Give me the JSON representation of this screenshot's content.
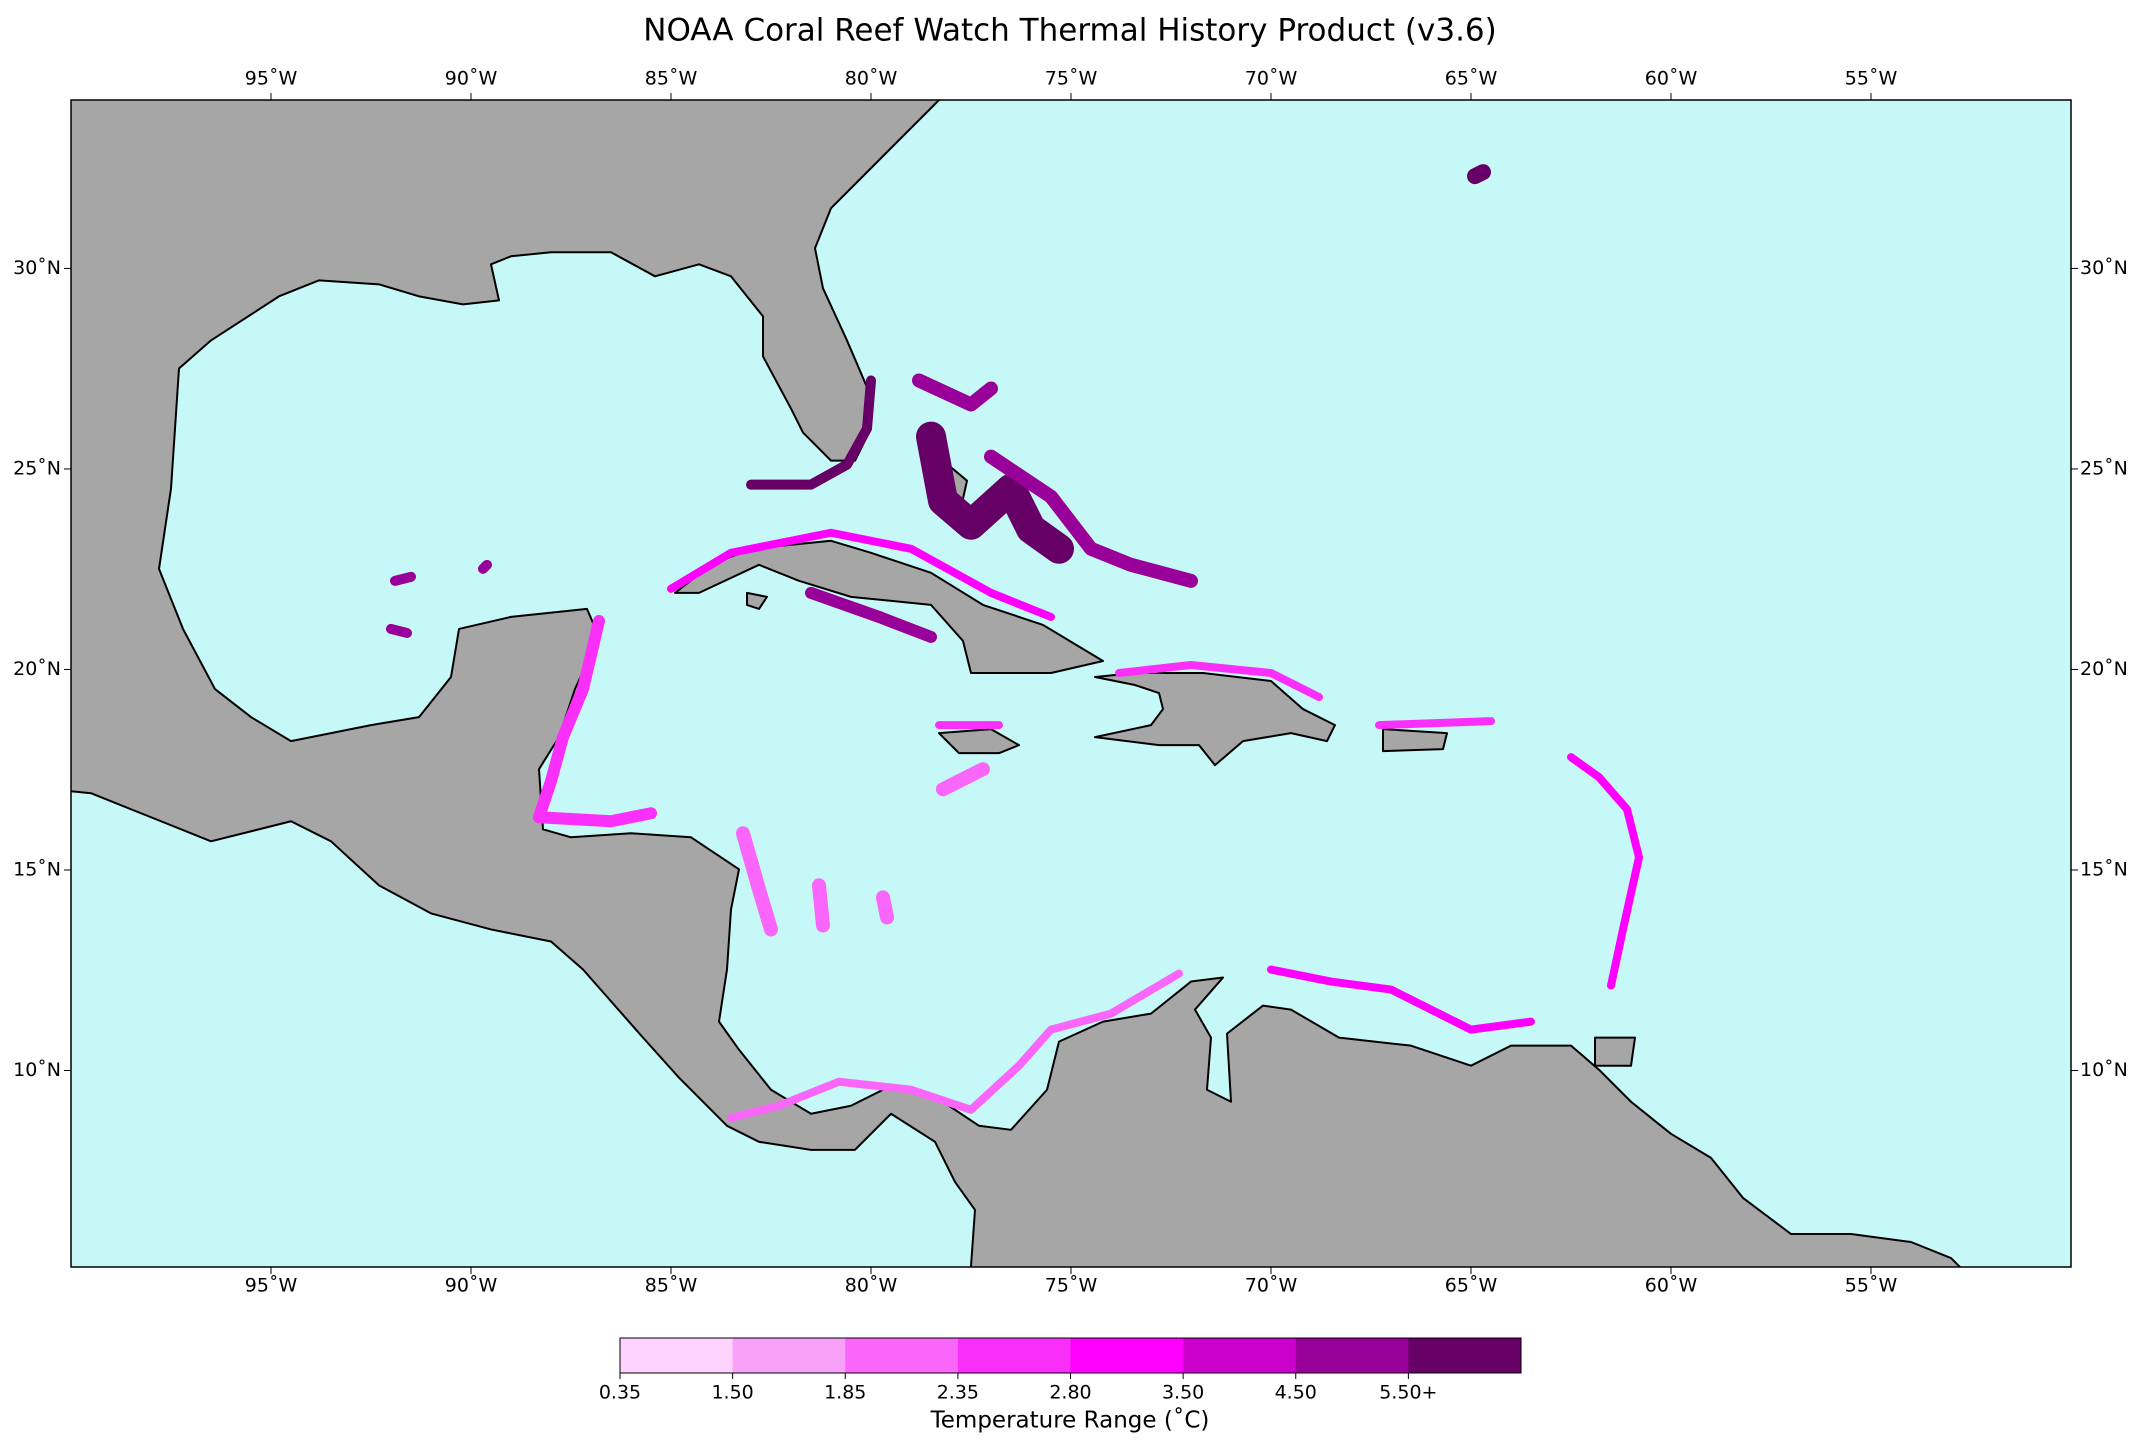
{
  "map": {
    "title": "NOAA Coral Reef Watch Thermal History Product (v3.6)",
    "xlim": [
      -100,
      -50
    ],
    "ylim": [
      5.1,
      34.2
    ],
    "xticks": [
      {
        "value": -95,
        "label": "95˚W"
      },
      {
        "value": -90,
        "label": "90˚W"
      },
      {
        "value": -85,
        "label": "85˚W"
      },
      {
        "value": -80,
        "label": "80˚W"
      },
      {
        "value": -75,
        "label": "75˚W"
      },
      {
        "value": -70,
        "label": "70˚W"
      },
      {
        "value": -65,
        "label": "65˚W"
      },
      {
        "value": -60,
        "label": "60˚W"
      },
      {
        "value": -55,
        "label": "55˚W"
      }
    ],
    "yticks": [
      {
        "value": 10,
        "label": "10˚N"
      },
      {
        "value": 15,
        "label": "15˚N"
      },
      {
        "value": 20,
        "label": "20˚N"
      },
      {
        "value": 25,
        "label": "25˚N"
      },
      {
        "value": 30,
        "label": "30˚N"
      }
    ],
    "colorbar": {
      "label": "Temperature Range (˚C)",
      "ticks": [
        0.35,
        {
          "value": 1.5,
          "label": "1.50"
        },
        {
          "value": 1.85,
          "label": "1.85"
        },
        {
          "value": 2.35,
          "label": "2.35"
        },
        {
          "value": 2.8,
          "label": "2.80"
        },
        {
          "value": 3.5,
          "label": "3.50"
        },
        {
          "value": 4.5,
          "label": "4.50"
        },
        {
          "value": 5.5,
          "label": "5.50+"
        }
      ],
      "colors": [
        "#fdd3fd",
        "#f9a0f9",
        "#f966f9",
        "#fa30fa",
        "#ff00ff",
        "#cc00cc",
        "#990099",
        "#660066"
      ]
    }
  }
}
